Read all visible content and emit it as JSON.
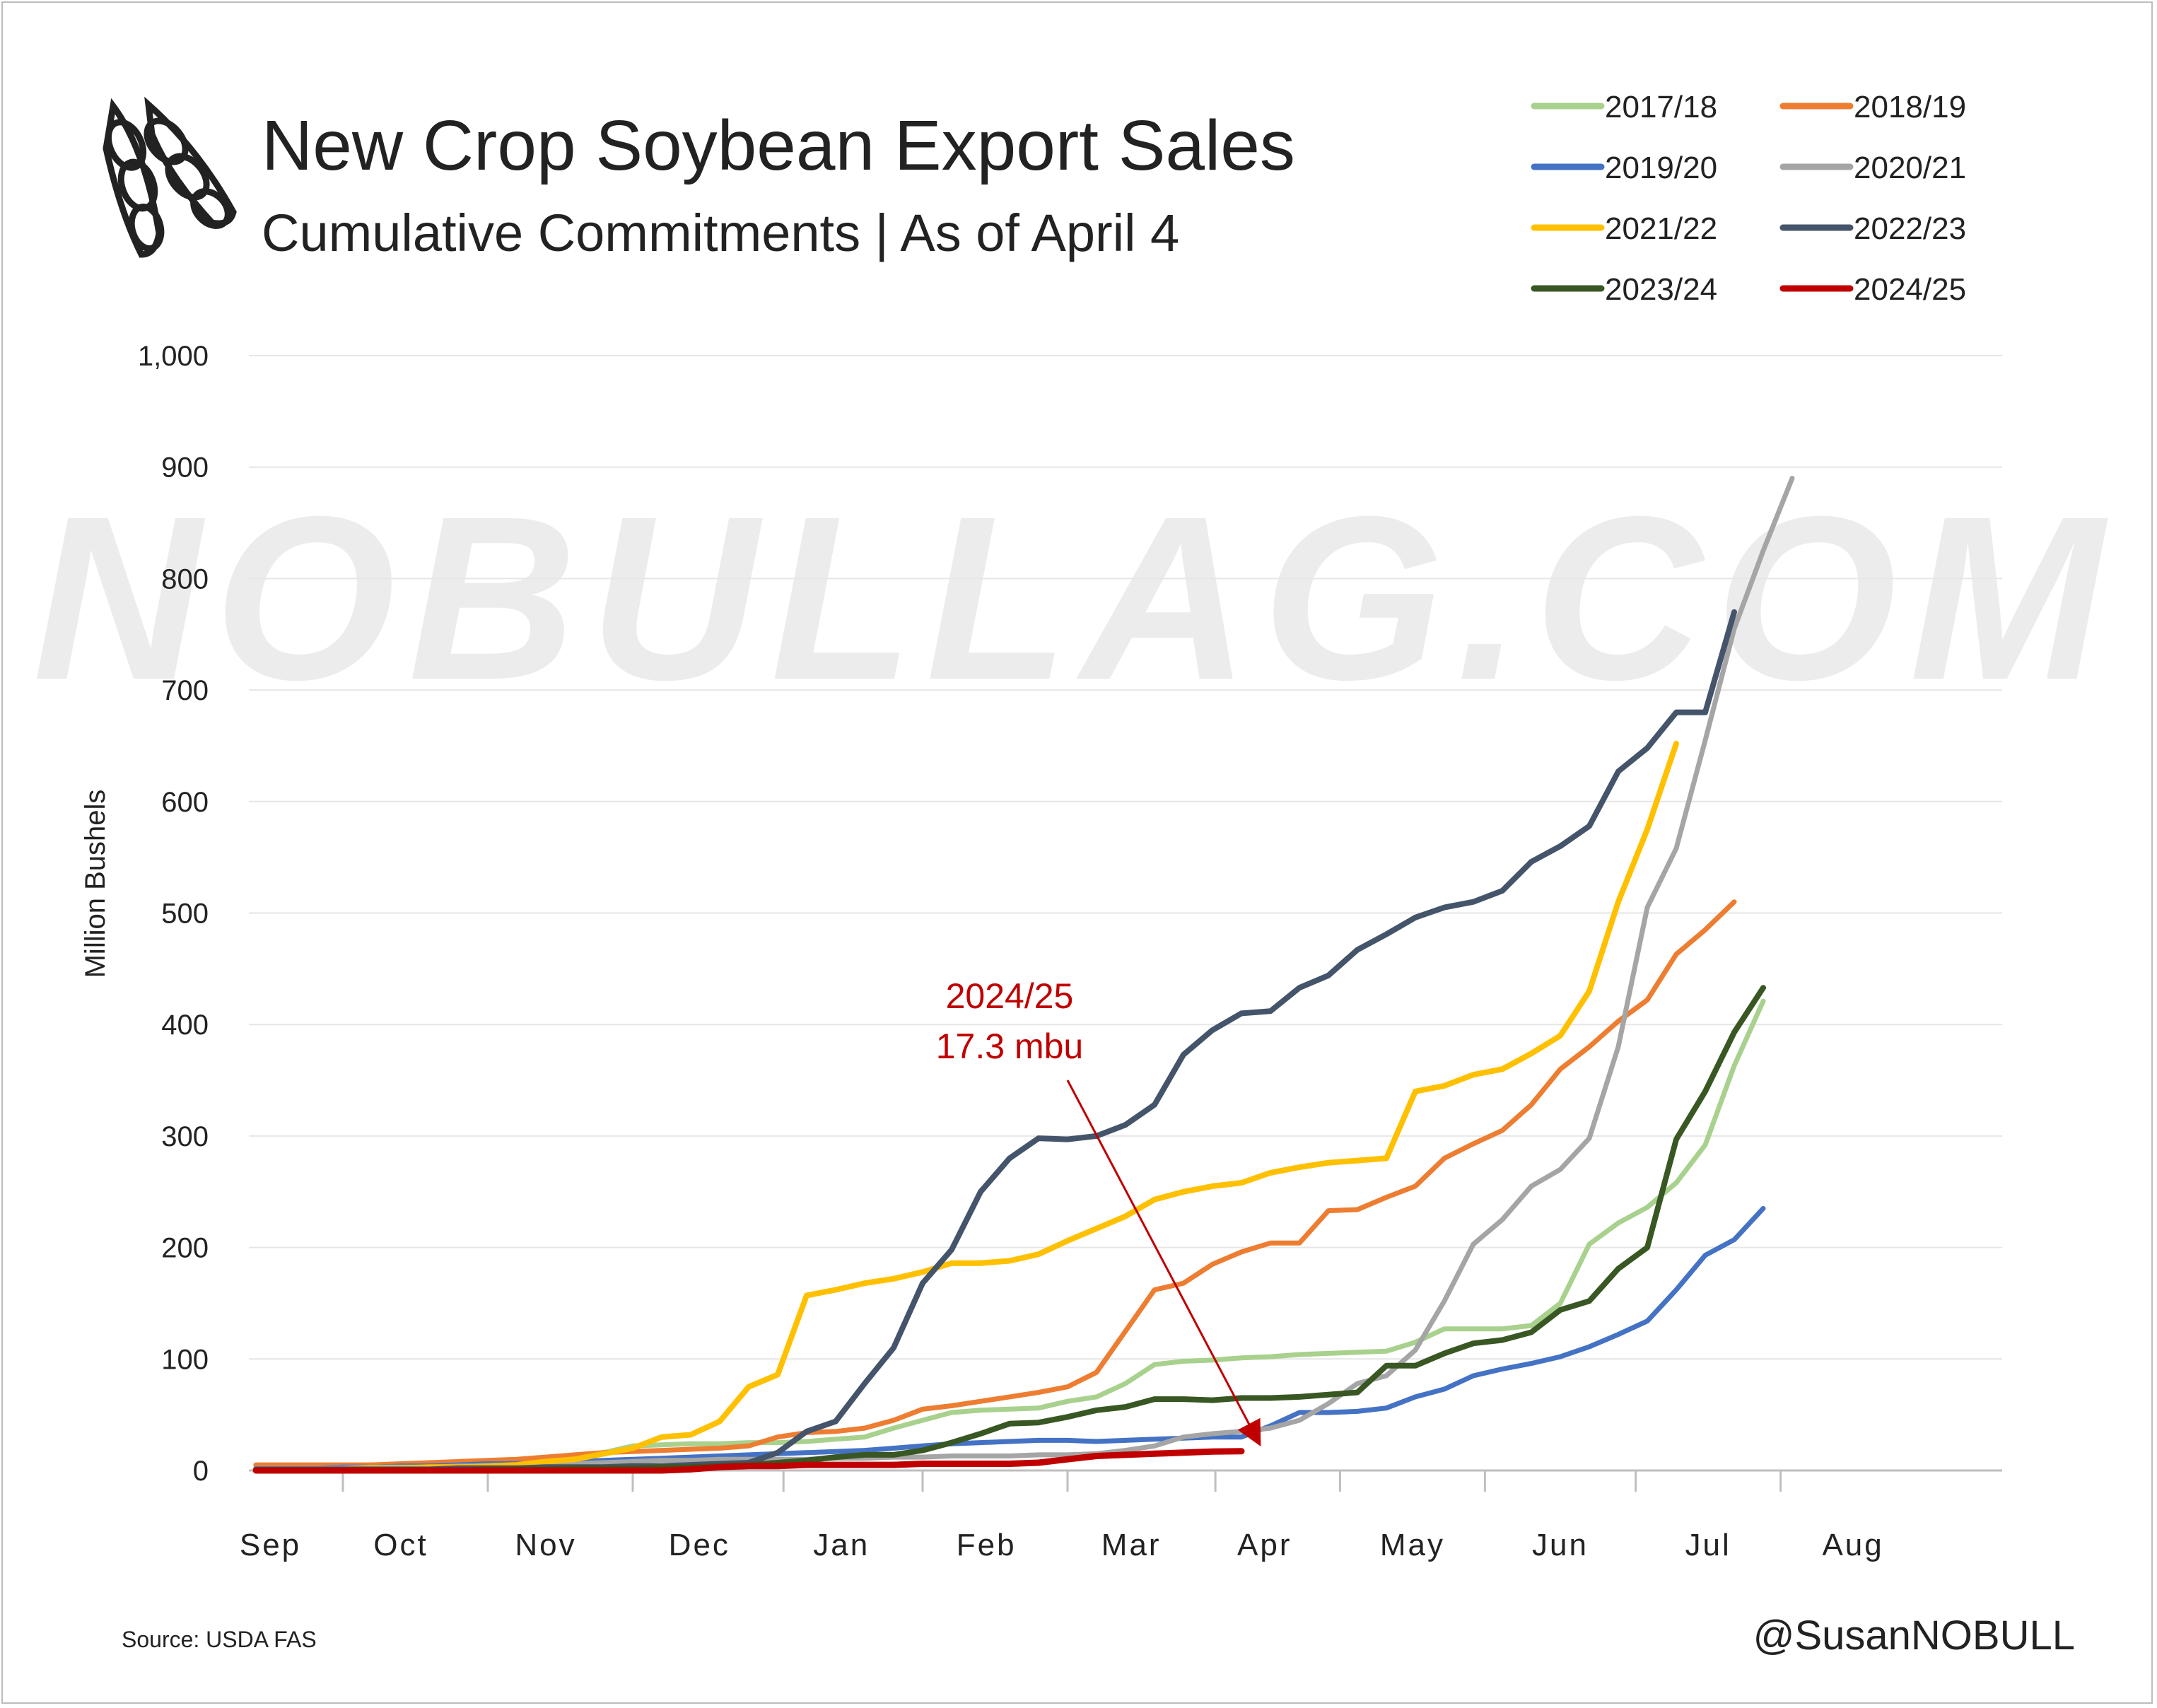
{
  "colors": {
    "background": "#ffffff",
    "text": "#222222",
    "grid": "#e6e6e6",
    "annotation": "#c00000",
    "watermark": "#ececec"
  },
  "logo": {
    "icon": "soybean-pod-icon"
  },
  "chart_data": {
    "type": "line",
    "title": "New Crop Soybean Export Sales",
    "subtitle": "Cumulative Commitments | As of April 4",
    "xlabel": "",
    "ylabel": "Million Bushels",
    "ylim": [
      0,
      1000
    ],
    "yticks": [
      0,
      100,
      200,
      300,
      400,
      500,
      600,
      700,
      800,
      900,
      1000
    ],
    "ytick_labels": [
      "0",
      "100",
      "200",
      "300",
      "400",
      "500",
      "600",
      "700",
      "800",
      "900",
      "1,000"
    ],
    "x_week_range": [
      0,
      52
    ],
    "months": [
      {
        "label": "Sep",
        "week": 0.5
      },
      {
        "label": "Oct",
        "week": 5
      },
      {
        "label": "Nov",
        "week": 10
      },
      {
        "label": "Dec",
        "week": 15.3
      },
      {
        "label": "Jan",
        "week": 20.2
      },
      {
        "label": "Feb",
        "week": 25.2
      },
      {
        "label": "Mar",
        "week": 30.2
      },
      {
        "label": "Apr",
        "week": 34.8
      },
      {
        "label": "May",
        "week": 39.9
      },
      {
        "label": "Jun",
        "week": 45
      },
      {
        "label": "Jul",
        "week": 50.1
      },
      {
        "label": "Aug",
        "week": 55.1
      }
    ],
    "grid": true,
    "legend_position": "top-right",
    "x_week_unit": "weeks after Sep 1 (approx.)",
    "series": [
      {
        "name": "2017/18",
        "color": "#a9d18e",
        "width": 7,
        "values": [
          4,
          4,
          4,
          4,
          4,
          5,
          5,
          6,
          7,
          8,
          9,
          12,
          16,
          22,
          23,
          24,
          24,
          25,
          25,
          26,
          28,
          30,
          38,
          45,
          52,
          54,
          55,
          56,
          62,
          66,
          78,
          95,
          98,
          99,
          101,
          102,
          104,
          105,
          106,
          107,
          115,
          127,
          127,
          127,
          130,
          150,
          203,
          222,
          236,
          258,
          292,
          363,
          421
        ]
      },
      {
        "name": "2018/19",
        "color": "#ed7d31",
        "width": 7,
        "values": [
          5,
          5,
          5,
          5,
          5,
          6,
          7,
          8,
          9,
          10,
          12,
          14,
          16,
          17,
          18,
          19,
          20,
          22,
          30,
          34,
          35,
          38,
          45,
          55,
          58,
          62,
          66,
          70,
          75,
          88,
          125,
          162,
          168,
          185,
          196,
          204,
          204,
          233,
          234,
          245,
          255,
          280,
          293,
          305,
          328,
          360,
          380,
          403,
          422,
          463,
          485,
          510
        ]
      },
      {
        "name": "2019/20",
        "color": "#4472c4",
        "width": 7,
        "values": [
          2,
          2,
          2,
          3,
          3,
          4,
          4,
          5,
          6,
          6,
          7,
          8,
          9,
          10,
          11,
          12,
          13,
          14,
          15,
          16,
          17,
          18,
          20,
          22,
          24,
          25,
          26,
          27,
          27,
          26,
          27,
          28,
          29,
          30,
          30,
          40,
          52,
          52,
          53,
          56,
          66,
          73,
          85,
          91,
          96,
          102,
          111,
          122,
          134,
          162,
          193,
          207,
          235
        ]
      },
      {
        "name": "2020/21",
        "color": "#a5a5a5",
        "width": 7,
        "values": [
          2,
          2,
          2,
          2,
          3,
          3,
          3,
          4,
          4,
          5,
          5,
          6,
          7,
          8,
          9,
          9,
          10,
          10,
          10,
          10,
          11,
          11,
          12,
          12,
          13,
          13,
          13,
          14,
          14,
          15,
          18,
          22,
          30,
          33,
          35,
          38,
          45,
          60,
          78,
          85,
          108,
          152,
          203,
          225,
          255,
          270,
          298,
          380,
          505,
          558,
          655,
          755,
          825,
          890
        ]
      },
      {
        "name": "2021/22",
        "color": "#ffc000",
        "width": 8,
        "values": [
          1,
          1,
          1,
          1,
          2,
          2,
          3,
          3,
          4,
          5,
          8,
          10,
          15,
          20,
          30,
          32,
          44,
          75,
          86,
          157,
          162,
          168,
          172,
          178,
          186,
          186,
          188,
          194,
          206,
          217,
          228,
          243,
          250,
          255,
          258,
          267,
          272,
          276,
          278,
          280,
          340,
          345,
          355,
          360,
          374,
          390,
          430,
          510,
          575,
          652
        ]
      },
      {
        "name": "2022/23",
        "color": "#44546a",
        "width": 8,
        "values": [
          1,
          1,
          1,
          1,
          1,
          1,
          1,
          2,
          2,
          2,
          3,
          3,
          3,
          4,
          4,
          5,
          6,
          7,
          16,
          35,
          44,
          78,
          110,
          168,
          198,
          250,
          280,
          298,
          297,
          300,
          310,
          328,
          373,
          395,
          410,
          412,
          433,
          444,
          467,
          481,
          496,
          505,
          510,
          520,
          546,
          560,
          578,
          627,
          648,
          680,
          680,
          770
        ]
      },
      {
        "name": "2023/24",
        "color": "#385723",
        "width": 8,
        "values": [
          0,
          0,
          0,
          0,
          0,
          0,
          0,
          0,
          1,
          1,
          1,
          2,
          2,
          2,
          3,
          3,
          4,
          5,
          7,
          9,
          12,
          14,
          14,
          18,
          25,
          33,
          42,
          43,
          48,
          54,
          57,
          64,
          64,
          63,
          65,
          65,
          66,
          68,
          70,
          94,
          94,
          105,
          114,
          117,
          124,
          144,
          152,
          181,
          200,
          297,
          340,
          393,
          433
        ]
      },
      {
        "name": "2024/25",
        "color": "#c00000",
        "width": 9,
        "values": [
          0,
          0,
          0,
          0,
          0,
          0,
          0,
          0,
          0,
          0,
          0,
          0,
          0,
          0,
          0,
          1,
          3,
          4,
          4,
          5,
          5,
          5,
          5,
          6,
          6,
          6,
          6,
          7,
          10,
          13,
          14,
          15,
          16,
          17,
          17.3
        ]
      }
    ],
    "annotations": [
      {
        "text_line1": "2024/25",
        "text_line2": "17.3 mbu",
        "target_series": "2024/25",
        "target_week": 34.6,
        "target_value": 17.3
      }
    ]
  },
  "watermark_text": "NOBULLAG.COM",
  "footer": {
    "source": "Source: USDA FAS",
    "handle": "@SusanNOBULL"
  }
}
